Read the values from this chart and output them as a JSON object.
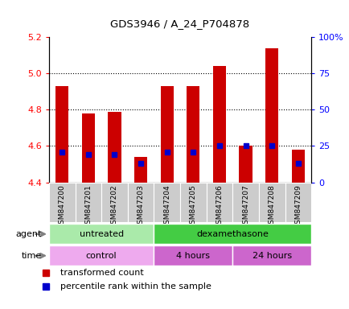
{
  "title": "GDS3946 / A_24_P704878",
  "samples": [
    "GSM847200",
    "GSM847201",
    "GSM847202",
    "GSM847203",
    "GSM847204",
    "GSM847205",
    "GSM847206",
    "GSM847207",
    "GSM847208",
    "GSM847209"
  ],
  "transformed_count": [
    4.93,
    4.78,
    4.79,
    4.54,
    4.93,
    4.93,
    5.04,
    4.6,
    5.14,
    4.58
  ],
  "percentile_rank": [
    21,
    19,
    19,
    13,
    21,
    21,
    25,
    25,
    25,
    13
  ],
  "y_min": 4.4,
  "y_max": 5.2,
  "y_ticks_left": [
    4.4,
    4.6,
    4.8,
    5.0,
    5.2
  ],
  "y_ticks_right": [
    0,
    25,
    50,
    75,
    100
  ],
  "bar_color": "#cc0000",
  "percentile_color": "#0000cc",
  "agent_groups": [
    {
      "label": "untreated",
      "start": 0,
      "end": 4,
      "color": "#aaeaaa"
    },
    {
      "label": "dexamethasone",
      "start": 4,
      "end": 10,
      "color": "#44cc44"
    }
  ],
  "time_groups": [
    {
      "label": "control",
      "start": 0,
      "end": 4,
      "color": "#eeaaee"
    },
    {
      "label": "4 hours",
      "start": 4,
      "end": 7,
      "color": "#cc66cc"
    },
    {
      "label": "24 hours",
      "start": 7,
      "end": 10,
      "color": "#cc66cc"
    }
  ],
  "legend_items": [
    {
      "label": "transformed count",
      "color": "#cc0000"
    },
    {
      "label": "percentile rank within the sample",
      "color": "#0000cc"
    }
  ],
  "figsize": [
    4.35,
    3.84
  ],
  "dpi": 100
}
